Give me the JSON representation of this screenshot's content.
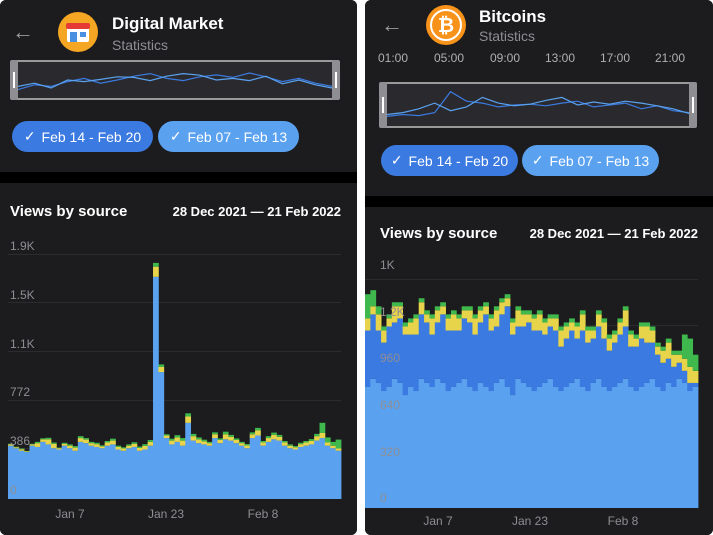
{
  "colors": {
    "blue_light": "#5aa2f0",
    "blue_dark": "#3b7ae0",
    "yellow": "#e8d44a",
    "green": "#3fb84d"
  },
  "left": {
    "title": "Digital Market",
    "subtitle": "Statistics",
    "avatar_icon": "storefront-icon",
    "chip1": "Feb 14 - Feb 20",
    "chip2": "Feb 07 - Feb 13",
    "section_title": "Views by source",
    "date_range": "28 Dec 2021 — 21 Feb 2022",
    "y_ticks": [
      "1.9K",
      "1.5K",
      "1.1K",
      "772",
      "386",
      "0"
    ],
    "x_ticks": [
      "Jan 7",
      "Jan 23",
      "Feb 8"
    ]
  },
  "right": {
    "title": "Bitcoins",
    "subtitle": "Statistics",
    "avatar_icon": "bitcoin-icon",
    "time_ticks": [
      "01:00",
      "05:00",
      "09:00",
      "13:00",
      "17:00",
      "21:00"
    ],
    "chip1": "Feb 14 - Feb 20",
    "chip2": "Feb 07 - Feb 13",
    "section_title": "Views by source",
    "date_range": "28 Dec 2021 — 21 Feb 2022",
    "y_ticks": [
      "1K",
      "1.2K",
      "960",
      "640",
      "320",
      "0"
    ],
    "x_ticks": [
      "Jan 7",
      "Jan 23",
      "Feb 8"
    ]
  },
  "chart_data": [
    {
      "type": "bar",
      "stacked": true,
      "x_range": [
        "28 Dec 2021",
        "21 Feb 2022"
      ],
      "ylim": [
        0,
        1930
      ],
      "series": [
        {
          "values": [
            420,
            400,
            380,
            370,
            420,
            410,
            450,
            430,
            400,
            390,
            420,
            400,
            380,
            450,
            440,
            420,
            410,
            400,
            420,
            430,
            390,
            380,
            400,
            410,
            380,
            390,
            420,
            1750,
            1000,
            480,
            430,
            450,
            420,
            600,
            460,
            440,
            430,
            420,
            480,
            440,
            470,
            460,
            440,
            420,
            400,
            480,
            500,
            420,
            450,
            470,
            460,
            420,
            400,
            390,
            410,
            420,
            430,
            460,
            480,
            420,
            400,
            380
          ]
        },
        {
          "values": [
            0,
            0,
            0,
            0,
            0,
            0,
            0,
            0,
            0,
            0,
            0,
            0,
            0,
            0,
            0,
            0,
            0,
            0,
            0,
            0,
            0,
            0,
            0,
            0,
            0,
            0,
            0,
            0,
            0,
            0,
            0,
            0,
            0,
            0,
            0,
            0,
            0,
            0,
            0,
            0,
            0,
            0,
            0,
            0,
            0,
            0,
            0,
            0,
            0,
            0,
            0,
            0,
            0,
            0,
            0,
            0,
            0,
            0,
            0,
            0,
            0,
            0
          ]
        },
        {
          "values": [
            10,
            8,
            12,
            6,
            10,
            30,
            20,
            40,
            35,
            10,
            15,
            20,
            25,
            30,
            28,
            20,
            22,
            15,
            25,
            30,
            20,
            18,
            20,
            25,
            22,
            28,
            30,
            80,
            40,
            20,
            30,
            35,
            40,
            50,
            35,
            30,
            25,
            20,
            30,
            25,
            40,
            30,
            25,
            20,
            22,
            30,
            40,
            25,
            30,
            35,
            30,
            25,
            20,
            18,
            22,
            25,
            28,
            35,
            40,
            25,
            20,
            18
          ]
        },
        {
          "values": [
            5,
            4,
            6,
            3,
            5,
            10,
            8,
            12,
            10,
            5,
            8,
            10,
            12,
            15,
            12,
            10,
            11,
            8,
            12,
            15,
            10,
            9,
            10,
            12,
            11,
            14,
            15,
            30,
            20,
            10,
            15,
            18,
            20,
            25,
            18,
            15,
            12,
            10,
            15,
            12,
            20,
            15,
            12,
            10,
            11,
            15,
            20,
            12,
            15,
            18,
            15,
            12,
            10,
            9,
            11,
            12,
            14,
            18,
            80,
            40,
            30,
            70
          ]
        }
      ]
    },
    {
      "type": "bar",
      "stacked": true,
      "x_range": [
        "28 Dec 2021",
        "21 Feb 2022"
      ],
      "ylim": [
        0,
        1180
      ],
      "series": [
        {
          "values": [
            600,
            640,
            620,
            580,
            600,
            640,
            620,
            560,
            600,
            580,
            640,
            620,
            600,
            640,
            620,
            580,
            600,
            620,
            640,
            600,
            580,
            620,
            600,
            580,
            620,
            640,
            600,
            560,
            640,
            620,
            600,
            580,
            600,
            620,
            640,
            600,
            580,
            600,
            620,
            640,
            600,
            580,
            620,
            640,
            600,
            580,
            600,
            620,
            640,
            600,
            580,
            600,
            620,
            640,
            600,
            580,
            620,
            600,
            640,
            620,
            580,
            600
          ]
        },
        {
          "values": [
            280,
            320,
            260,
            240,
            300,
            280,
            320,
            300,
            260,
            280,
            320,
            300,
            260,
            280,
            340,
            300,
            280,
            260,
            300,
            320,
            280,
            300,
            360,
            300,
            280,
            320,
            400,
            300,
            260,
            280,
            320,
            300,
            280,
            240,
            260,
            280,
            220,
            240,
            260,
            200,
            280,
            240,
            220,
            260,
            240,
            200,
            220,
            240,
            260,
            200,
            220,
            240,
            200,
            180,
            160,
            140,
            120,
            100,
            80,
            60,
            40,
            20
          ]
        },
        {
          "values": [
            60,
            40,
            80,
            60,
            40,
            80,
            60,
            40,
            60,
            80,
            60,
            40,
            80,
            60,
            40,
            60,
            80,
            60,
            40,
            60,
            80,
            60,
            40,
            60,
            80,
            60,
            40,
            60,
            80,
            60,
            40,
            60,
            80,
            60,
            40,
            60,
            80,
            60,
            40,
            60,
            80,
            60,
            40,
            60,
            80,
            60,
            40,
            60,
            80,
            60,
            40,
            60,
            80,
            60,
            40,
            60,
            80,
            60,
            40,
            60,
            80,
            60
          ]
        },
        {
          "values": [
            120,
            80,
            40,
            20,
            20,
            20,
            20,
            20,
            20,
            20,
            20,
            20,
            20,
            20,
            20,
            20,
            20,
            20,
            20,
            20,
            20,
            20,
            20,
            20,
            20,
            20,
            20,
            20,
            20,
            20,
            20,
            20,
            20,
            20,
            20,
            20,
            20,
            20,
            20,
            20,
            20,
            20,
            20,
            20,
            20,
            20,
            20,
            20,
            20,
            20,
            20,
            20,
            20,
            20,
            20,
            20,
            20,
            20,
            20,
            120,
            140,
            80
          ]
        }
      ]
    }
  ],
  "minimap_data": {
    "left_a": [
      20,
      35,
      30,
      45,
      55,
      40,
      50,
      62,
      70,
      55,
      48,
      60,
      66,
      58,
      72,
      60,
      45,
      55,
      40,
      30
    ],
    "left_b": [
      30,
      40,
      25,
      50,
      45,
      52,
      60,
      58,
      48,
      62,
      70,
      65,
      50,
      55,
      48,
      62,
      38,
      50,
      35,
      25
    ],
    "right_a": [
      20,
      25,
      22,
      30,
      85,
      60,
      55,
      45,
      50,
      52,
      48,
      55,
      60,
      45,
      50,
      55,
      40,
      48,
      35,
      30
    ],
    "right_b": [
      25,
      30,
      40,
      55,
      35,
      45,
      70,
      55,
      48,
      52,
      62,
      70,
      50,
      58,
      52,
      60,
      55,
      48,
      40,
      28
    ]
  }
}
